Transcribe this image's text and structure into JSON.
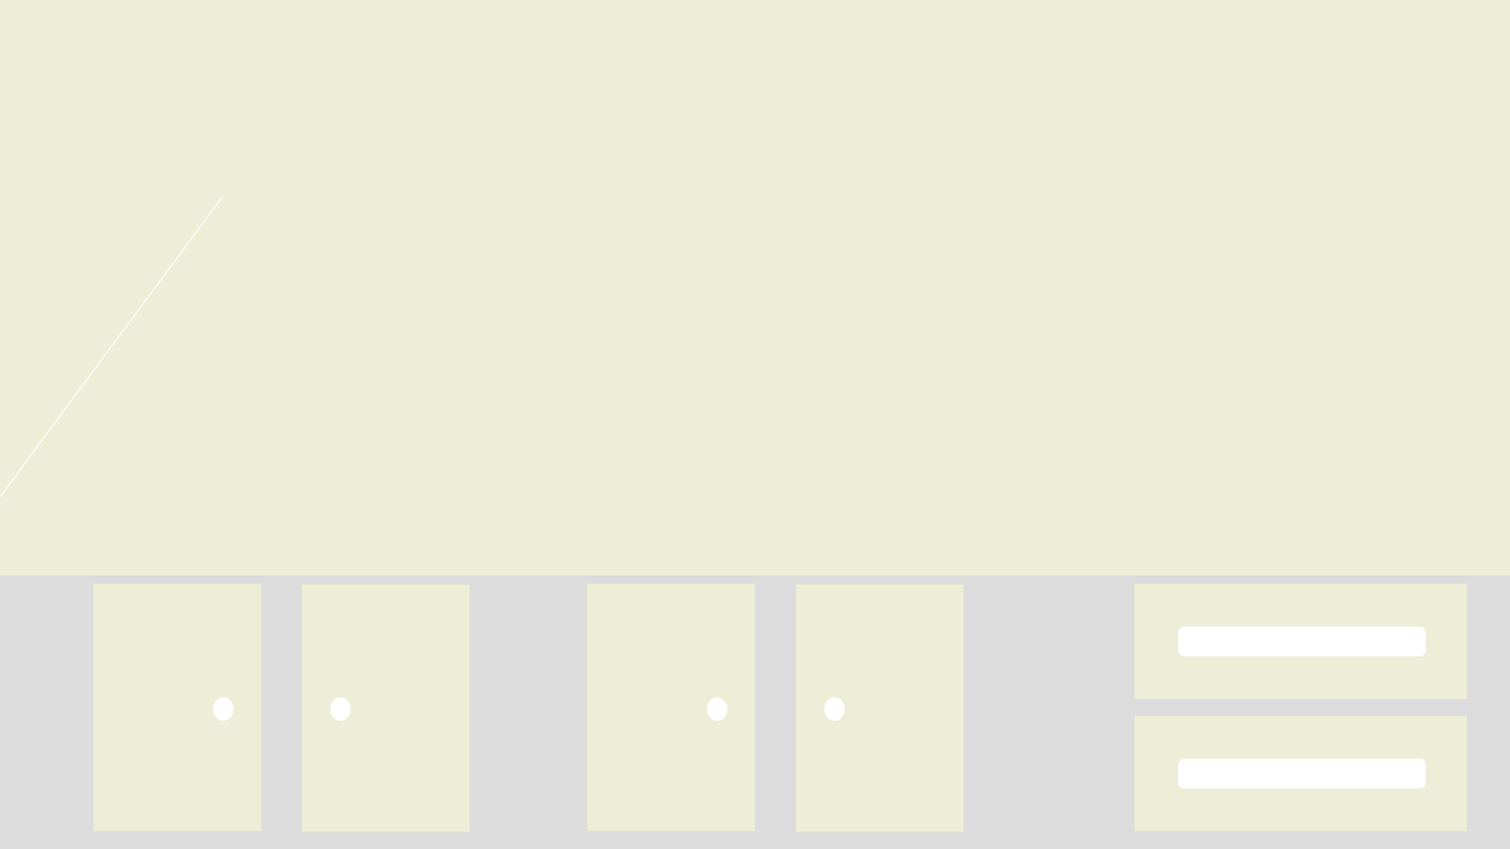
{
  "scene": {
    "wall_color": "#eeedd8",
    "floor_color": "#dcdcdc",
    "panel_color": "#eeedd8",
    "hardware_color": "#ffffff"
  },
  "cabinets": [
    {
      "name": "left-cabinet",
      "doors": [
        "left-door",
        "right-door"
      ]
    },
    {
      "name": "center-cabinet",
      "doors": [
        "left-door",
        "right-door"
      ]
    },
    {
      "name": "right-drawer-unit",
      "drawers": [
        "top-drawer",
        "bottom-drawer"
      ]
    }
  ]
}
